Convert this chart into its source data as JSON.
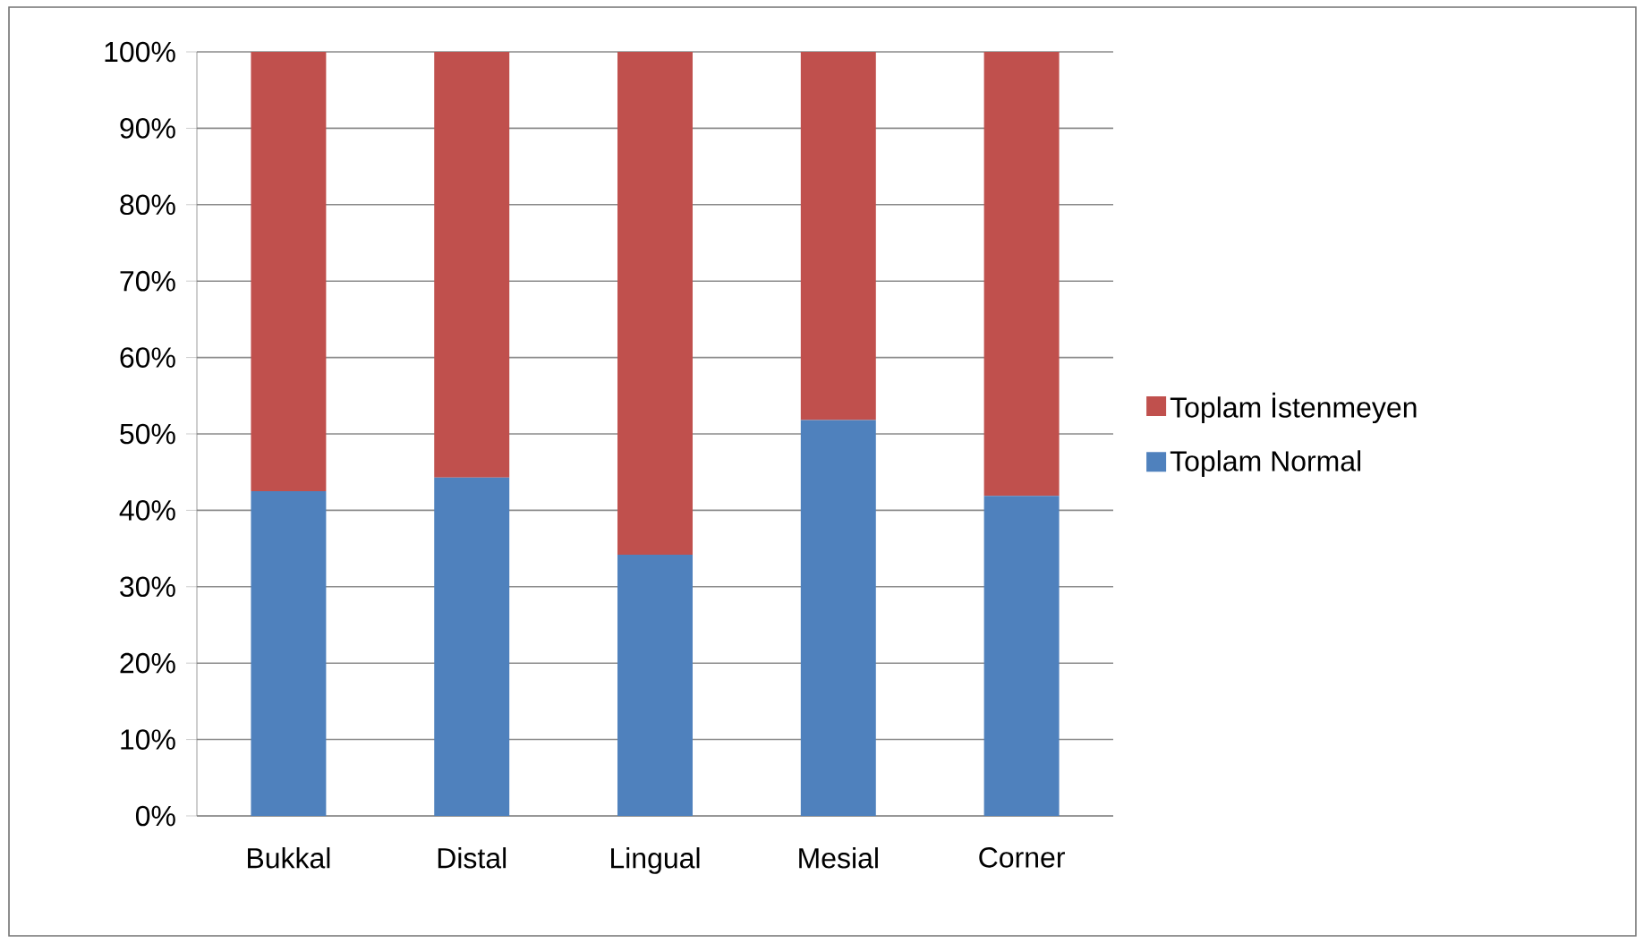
{
  "chart_data": {
    "type": "bar",
    "stacked": true,
    "categories": [
      "Bukkal",
      "Distal",
      "Lingual",
      "Mesial",
      "Corner"
    ],
    "series": [
      {
        "name": "Toplam Normal",
        "color": "#4f81bd",
        "values": [
          42.5,
          44.3,
          34.2,
          51.8,
          41.9
        ]
      },
      {
        "name": "Toplam İstenmeyen",
        "color": "#c0504d",
        "values": [
          57.5,
          55.7,
          65.8,
          48.2,
          58.1
        ]
      }
    ],
    "ylim": [
      0,
      100
    ],
    "yticks": [
      {
        "value": 0,
        "label": "0%"
      },
      {
        "value": 10,
        "label": "10%"
      },
      {
        "value": 20,
        "label": "20%"
      },
      {
        "value": 30,
        "label": "30%"
      },
      {
        "value": 40,
        "label": "40%"
      },
      {
        "value": 50,
        "label": "50%"
      },
      {
        "value": 60,
        "label": "60%"
      },
      {
        "value": 70,
        "label": "70%"
      },
      {
        "value": 80,
        "label": "80%"
      },
      {
        "value": 90,
        "label": "90%"
      },
      {
        "value": 100,
        "label": "100%"
      }
    ],
    "grid": "y",
    "legend": "right"
  }
}
